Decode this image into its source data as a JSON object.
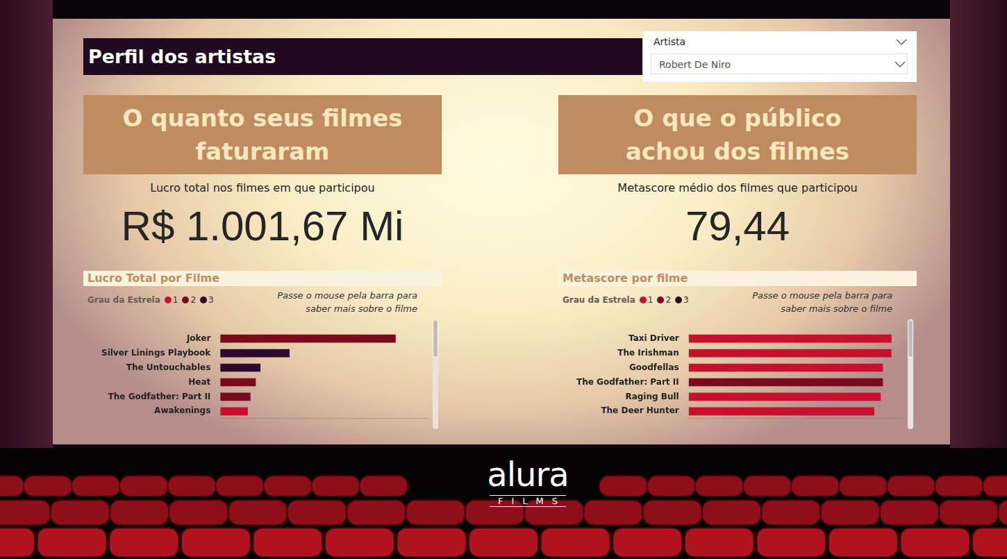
{
  "header": {
    "title": "Perfil dos artistas"
  },
  "slicer": {
    "label": "Artista",
    "value": "Robert De Niro"
  },
  "panels": [
    {
      "heading": [
        "O quanto seus filmes",
        "faturaram"
      ],
      "kpi_label": "Lucro total nos filmes em que participou",
      "kpi_value": "R$ 1.001,67 Mi"
    },
    {
      "heading": [
        "O que o público",
        "achou dos filmes"
      ],
      "kpi_label": "Metascore médio dos filmes que participou",
      "kpi_value": "79,44"
    }
  ],
  "chart_data": [
    {
      "type": "bar",
      "title": "Lucro Total por Filme",
      "orientation": "horizontal",
      "stacked": true,
      "annotation": "Passe o mouse pela barra para saber mais sobre o filme",
      "legend_title": "Grau da Estrela",
      "legend": "top left",
      "tick_labels": "y",
      "grid": false,
      "categories": [
        "Joker",
        "Silver Linings Playbook",
        "The Untouchables",
        "Heat",
        "The Godfather: Part II",
        "Awakenings"
      ],
      "series": [
        {
          "name": "1",
          "color": "#c8102e",
          "values": [
            null,
            null,
            null,
            null,
            null,
            52.1
          ]
        },
        {
          "name": "2",
          "color": "#7b0a1e",
          "values": [
            335.45,
            null,
            null,
            67.44,
            57.3,
            null
          ]
        },
        {
          "name": "3",
          "color": "#2b0a2e",
          "values": [
            null,
            132.09,
            76.27,
            null,
            null,
            null
          ]
        }
      ],
      "xlim": [
        0,
        400
      ]
    },
    {
      "type": "bar",
      "title": "Metascore por filme",
      "orientation": "horizontal",
      "stacked": true,
      "annotation": "Passe o mouse pela barra para saber mais sobre o filme",
      "legend_title": "Grau da Estrela",
      "legend": "top left",
      "tick_labels": "y",
      "grid": false,
      "categories": [
        "Taxi Driver",
        "The Irishman",
        "Goodfellas",
        "The Godfather: Part II",
        "Raging Bull",
        "The Deer Hunter"
      ],
      "series": [
        {
          "name": "1",
          "color": "#c8102e",
          "values": [
            94,
            94,
            90,
            null,
            89,
            86
          ]
        },
        {
          "name": "2",
          "color": "#7b0a1e",
          "values": [
            null,
            null,
            null,
            90,
            null,
            null
          ]
        },
        {
          "name": "3",
          "color": "#2b0a2e",
          "values": [
            null,
            null,
            null,
            null,
            null,
            null
          ]
        }
      ],
      "xlim": [
        0,
        100
      ]
    }
  ],
  "logo": {
    "name": "alura",
    "subtitle": "FILMS"
  }
}
